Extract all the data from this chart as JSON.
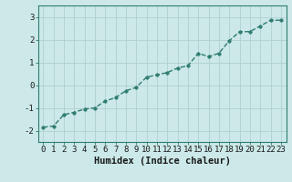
{
  "x": [
    0,
    1,
    2,
    3,
    4,
    5,
    6,
    7,
    8,
    9,
    10,
    11,
    12,
    13,
    14,
    15,
    16,
    17,
    18,
    19,
    20,
    21,
    22,
    23
  ],
  "y": [
    -1.85,
    -1.8,
    -1.3,
    -1.2,
    -1.05,
    -1.0,
    -0.7,
    -0.55,
    -0.25,
    -0.1,
    0.35,
    0.45,
    0.55,
    0.75,
    0.85,
    1.4,
    1.25,
    1.4,
    1.95,
    2.35,
    2.35,
    2.6,
    2.85,
    2.85
  ],
  "line_color": "#2e7d6e",
  "marker": "o",
  "marker_size": 2.5,
  "bg_color": "#cce8e8",
  "grid_color": "#b0d0d0",
  "xlabel": "Humidex (Indice chaleur)",
  "ylim": [
    -2.5,
    3.5
  ],
  "xlim": [
    -0.5,
    23.5
  ],
  "yticks": [
    -2,
    -1,
    0,
    1,
    2,
    3
  ],
  "xticks": [
    0,
    1,
    2,
    3,
    4,
    5,
    6,
    7,
    8,
    9,
    10,
    11,
    12,
    13,
    14,
    15,
    16,
    17,
    18,
    19,
    20,
    21,
    22,
    23
  ],
  "tick_label_fontsize": 6.5,
  "xlabel_fontsize": 7.5,
  "line_width": 1.0
}
